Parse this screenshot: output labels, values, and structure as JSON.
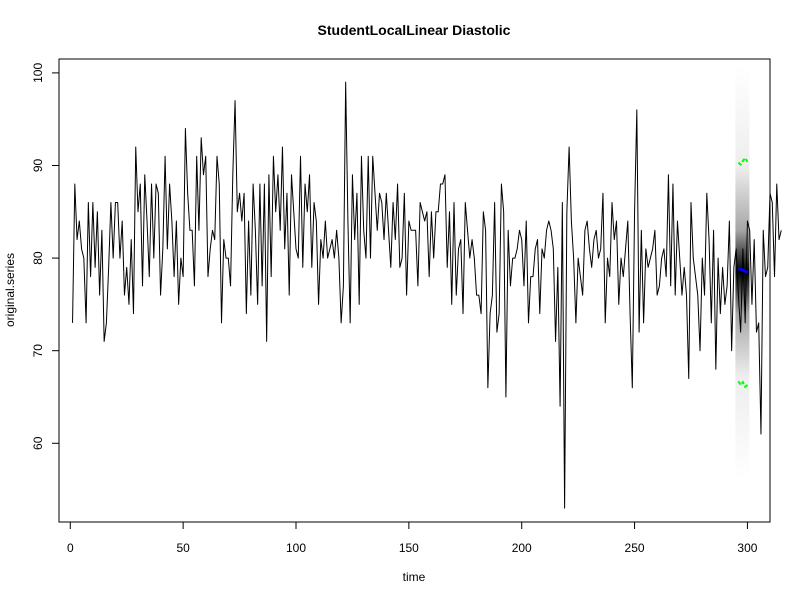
{
  "chart_data": {
    "type": "line",
    "title": "StudentLocalLinear Diastolic",
    "xlabel": "time",
    "ylabel": "original.series",
    "xlim": [
      -5,
      310
    ],
    "ylim": [
      51.5,
      101.5
    ],
    "xticks": [
      0,
      50,
      100,
      150,
      200,
      250,
      300
    ],
    "yticks": [
      60,
      70,
      80,
      90,
      100
    ],
    "grid": false,
    "legend": "none",
    "series": [
      {
        "color": "#000000",
        "x_start": 1,
        "values": [
          73,
          88,
          82,
          84,
          81,
          80,
          73,
          86,
          78,
          86,
          79,
          85,
          76,
          83,
          71,
          73,
          79,
          86,
          80,
          86,
          86,
          80,
          84,
          76,
          79,
          75,
          82,
          74,
          92,
          85,
          88,
          77,
          89,
          84,
          78,
          88,
          80,
          88,
          87,
          76,
          81,
          91,
          81,
          88,
          84,
          78,
          84,
          75,
          80,
          78,
          94,
          87,
          83,
          83,
          77,
          91,
          83,
          93,
          89,
          91,
          78,
          81,
          83,
          82,
          91,
          88,
          73,
          82,
          80,
          80,
          77,
          89,
          97,
          85,
          87,
          84,
          87,
          74,
          84,
          76,
          88,
          83,
          75,
          88,
          77,
          88,
          71,
          89,
          78,
          91,
          85,
          89,
          83,
          92,
          81,
          87,
          76,
          89,
          85,
          81,
          80,
          91,
          79,
          88,
          85,
          89,
          79,
          86,
          84,
          75,
          82,
          80,
          84,
          80,
          81,
          82,
          80,
          83,
          80,
          73,
          77,
          99,
          84,
          73,
          89,
          82,
          87,
          75,
          91,
          83,
          80,
          91,
          80,
          91,
          87,
          83,
          87,
          86,
          82,
          87,
          83,
          79,
          86,
          82,
          88,
          79,
          80,
          87,
          76,
          84,
          83,
          83,
          83,
          77,
          86,
          85,
          84,
          85,
          78,
          85,
          80,
          85,
          85,
          88,
          88,
          89,
          79,
          85,
          75,
          86,
          76,
          81,
          82,
          74,
          86,
          83,
          80,
          82,
          80,
          76,
          76,
          74,
          85,
          83,
          66,
          74,
          76,
          86,
          72,
          74,
          88,
          85,
          65,
          83,
          77,
          80,
          80,
          81,
          83,
          82,
          77,
          84,
          73,
          78,
          78,
          81,
          82,
          74,
          81,
          80,
          83,
          84,
          83,
          81,
          71,
          79,
          64,
          86,
          53,
          85,
          92,
          84,
          80,
          73,
          80,
          78,
          76,
          83,
          84,
          81,
          79,
          82,
          83,
          80,
          81,
          87,
          73,
          80,
          78,
          86,
          82,
          84,
          75,
          80,
          78,
          81,
          84,
          74,
          66,
          85,
          96,
          72,
          83,
          73,
          81,
          79,
          80,
          81,
          83,
          76,
          77,
          80,
          81,
          78,
          89,
          77,
          88,
          76,
          84,
          80,
          76,
          79,
          76,
          67,
          86,
          80,
          78,
          76,
          70,
          80,
          76,
          87,
          82,
          73,
          83,
          68,
          80,
          74,
          79,
          75,
          77,
          84,
          70,
          79,
          81,
          76,
          72,
          81,
          73,
          84,
          83,
          75,
          82,
          72,
          73,
          61,
          83,
          78,
          79,
          87,
          86,
          78,
          88,
          82,
          83
        ]
      }
    ],
    "forecast": {
      "x": [
        296,
        297,
        298,
        299,
        300
      ],
      "upper": [
        90.3,
        90.1,
        90.5,
        90.8,
        90.4
      ],
      "median": [
        78.8,
        78.8,
        78.7,
        78.6,
        78.4
      ],
      "lower": [
        66.7,
        66.3,
        66.6,
        66.1,
        66.3
      ],
      "density_range": [
        56,
        101
      ],
      "median_color": "#0000ff",
      "interval_color": "#00ff00"
    }
  }
}
